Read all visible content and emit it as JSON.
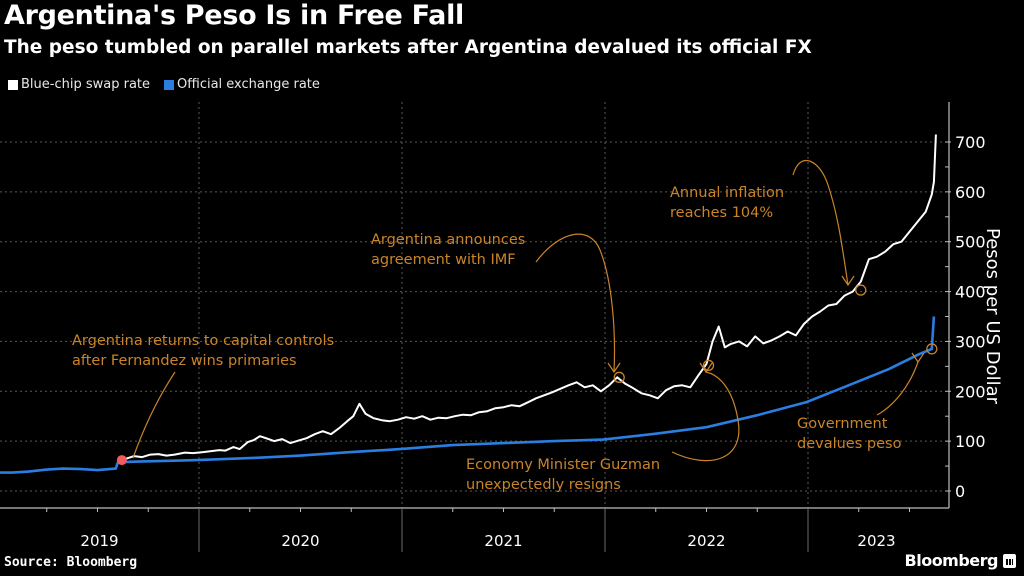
{
  "header": {
    "title": "Argentina's Peso Is in Free Fall",
    "subtitle": "The peso tumbled on parallel markets after Argentina devalued its official FX"
  },
  "footer": {
    "source": "Source: Bloomberg",
    "brand": "Bloomberg",
    "brand_icon": "bloomberg-logo-icon"
  },
  "colors": {
    "background": "#000000",
    "blue_chip": "#ffffff",
    "official": "#2a7ee0",
    "annotation": "#c9842a",
    "marker_first": "#f25c5c",
    "grid": "#5a5a5a",
    "axis": "#bdbdbd"
  },
  "chart_data": {
    "type": "line",
    "title": "Argentina's Peso Is in Free Fall",
    "subtitle": "The peso tumbled on parallel markets after Argentina devalued its official FX",
    "xlabel": "",
    "ylabel": "Pesos per US Dollar",
    "ylim": [
      0,
      750
    ],
    "xlim": [
      2019.0,
      2023.7
    ],
    "yticks": [
      0,
      100,
      200,
      300,
      400,
      500,
      600,
      700
    ],
    "xticks": [
      "2019",
      "2020",
      "2021",
      "2022",
      "2023"
    ],
    "grid": true,
    "legend_position": "top-left",
    "series": [
      {
        "name": "Blue-chip swap rate",
        "color": "#ffffff",
        "points": [
          [
            2019.62,
            62
          ],
          [
            2019.65,
            66
          ],
          [
            2019.68,
            70
          ],
          [
            2019.72,
            68
          ],
          [
            2019.76,
            73
          ],
          [
            2019.8,
            74
          ],
          [
            2019.84,
            71
          ],
          [
            2019.88,
            73
          ],
          [
            2019.93,
            77
          ],
          [
            2019.97,
            76
          ],
          [
            2020.02,
            78
          ],
          [
            2020.06,
            80
          ],
          [
            2020.1,
            82
          ],
          [
            2020.13,
            81
          ],
          [
            2020.17,
            88
          ],
          [
            2020.2,
            84
          ],
          [
            2020.24,
            98
          ],
          [
            2020.27,
            102
          ],
          [
            2020.3,
            110
          ],
          [
            2020.33,
            106
          ],
          [
            2020.37,
            100
          ],
          [
            2020.41,
            104
          ],
          [
            2020.45,
            96
          ],
          [
            2020.49,
            101
          ],
          [
            2020.53,
            106
          ],
          [
            2020.57,
            114
          ],
          [
            2020.61,
            120
          ],
          [
            2020.65,
            114
          ],
          [
            2020.69,
            126
          ],
          [
            2020.73,
            140
          ],
          [
            2020.76,
            150
          ],
          [
            2020.79,
            175
          ],
          [
            2020.82,
            155
          ],
          [
            2020.86,
            146
          ],
          [
            2020.9,
            142
          ],
          [
            2020.94,
            140
          ],
          [
            2020.98,
            143
          ],
          [
            2021.02,
            148
          ],
          [
            2021.06,
            145
          ],
          [
            2021.1,
            150
          ],
          [
            2021.14,
            143
          ],
          [
            2021.18,
            147
          ],
          [
            2021.22,
            146
          ],
          [
            2021.26,
            150
          ],
          [
            2021.3,
            153
          ],
          [
            2021.34,
            152
          ],
          [
            2021.38,
            158
          ],
          [
            2021.42,
            160
          ],
          [
            2021.46,
            166
          ],
          [
            2021.5,
            168
          ],
          [
            2021.54,
            172
          ],
          [
            2021.58,
            170
          ],
          [
            2021.62,
            178
          ],
          [
            2021.66,
            186
          ],
          [
            2021.7,
            192
          ],
          [
            2021.74,
            198
          ],
          [
            2021.78,
            205
          ],
          [
            2021.82,
            212
          ],
          [
            2021.86,
            218
          ],
          [
            2021.9,
            208
          ],
          [
            2021.94,
            212
          ],
          [
            2021.98,
            200
          ],
          [
            2022.02,
            212
          ],
          [
            2022.06,
            228
          ],
          [
            2022.1,
            215
          ],
          [
            2022.14,
            206
          ],
          [
            2022.18,
            196
          ],
          [
            2022.22,
            192
          ],
          [
            2022.26,
            186
          ],
          [
            2022.3,
            202
          ],
          [
            2022.34,
            210
          ],
          [
            2022.38,
            212
          ],
          [
            2022.42,
            208
          ],
          [
            2022.46,
            232
          ],
          [
            2022.5,
            255
          ],
          [
            2022.53,
            300
          ],
          [
            2022.56,
            330
          ],
          [
            2022.59,
            288
          ],
          [
            2022.62,
            295
          ],
          [
            2022.66,
            300
          ],
          [
            2022.7,
            290
          ],
          [
            2022.74,
            310
          ],
          [
            2022.78,
            296
          ],
          [
            2022.82,
            302
          ],
          [
            2022.86,
            310
          ],
          [
            2022.9,
            320
          ],
          [
            2022.94,
            312
          ],
          [
            2022.98,
            335
          ],
          [
            2023.02,
            350
          ],
          [
            2023.06,
            360
          ],
          [
            2023.1,
            372
          ],
          [
            2023.14,
            375
          ],
          [
            2023.18,
            392
          ],
          [
            2023.22,
            400
          ],
          [
            2023.26,
            420
          ],
          [
            2023.3,
            465
          ],
          [
            2023.34,
            470
          ],
          [
            2023.38,
            480
          ],
          [
            2023.42,
            495
          ],
          [
            2023.46,
            500
          ],
          [
            2023.5,
            520
          ],
          [
            2023.54,
            540
          ],
          [
            2023.58,
            560
          ],
          [
            2023.61,
            595
          ],
          [
            2023.62,
            620
          ],
          [
            2023.63,
            715
          ]
        ]
      },
      {
        "name": "Official exchange rate",
        "color": "#2a7ee0",
        "points": [
          [
            2019.0,
            37
          ],
          [
            2019.08,
            37
          ],
          [
            2019.16,
            39
          ],
          [
            2019.25,
            43
          ],
          [
            2019.33,
            45
          ],
          [
            2019.42,
            44
          ],
          [
            2019.5,
            42
          ],
          [
            2019.59,
            45
          ],
          [
            2019.6,
            57
          ],
          [
            2019.62,
            58
          ],
          [
            2019.7,
            59
          ],
          [
            2019.8,
            60
          ],
          [
            2019.9,
            61
          ],
          [
            2019.99,
            62
          ],
          [
            2020.25,
            66
          ],
          [
            2020.5,
            71
          ],
          [
            2020.75,
            78
          ],
          [
            2020.99,
            84
          ],
          [
            2021.25,
            92
          ],
          [
            2021.5,
            96
          ],
          [
            2021.75,
            100
          ],
          [
            2021.99,
            103
          ],
          [
            2022.25,
            115
          ],
          [
            2022.5,
            128
          ],
          [
            2022.75,
            152
          ],
          [
            2022.99,
            178
          ],
          [
            2023.2,
            212
          ],
          [
            2023.4,
            245
          ],
          [
            2023.55,
            275
          ],
          [
            2023.61,
            285
          ],
          [
            2023.62,
            350
          ]
        ]
      }
    ],
    "annotations": [
      {
        "text": [
          "Argentina returns to capital controls",
          "after Fernandez wins primaries"
        ],
        "target": [
          2019.62,
          62
        ],
        "marker": "filled-dot"
      },
      {
        "text": [
          "Argentina announces",
          "agreement with IMF"
        ],
        "target": [
          2022.07,
          228
        ],
        "marker": "circle"
      },
      {
        "text": [
          "Economy Minister Guzman",
          "unexpectedly resigns"
        ],
        "target": [
          2022.51,
          252
        ],
        "marker": "circle"
      },
      {
        "text": [
          "Annual inflation",
          "reaches 104%"
        ],
        "target": [
          2023.26,
          403
        ],
        "marker": "circle"
      },
      {
        "text": [
          "Government",
          "devalues peso"
        ],
        "target": [
          2023.61,
          285
        ],
        "marker": "circle"
      }
    ]
  }
}
